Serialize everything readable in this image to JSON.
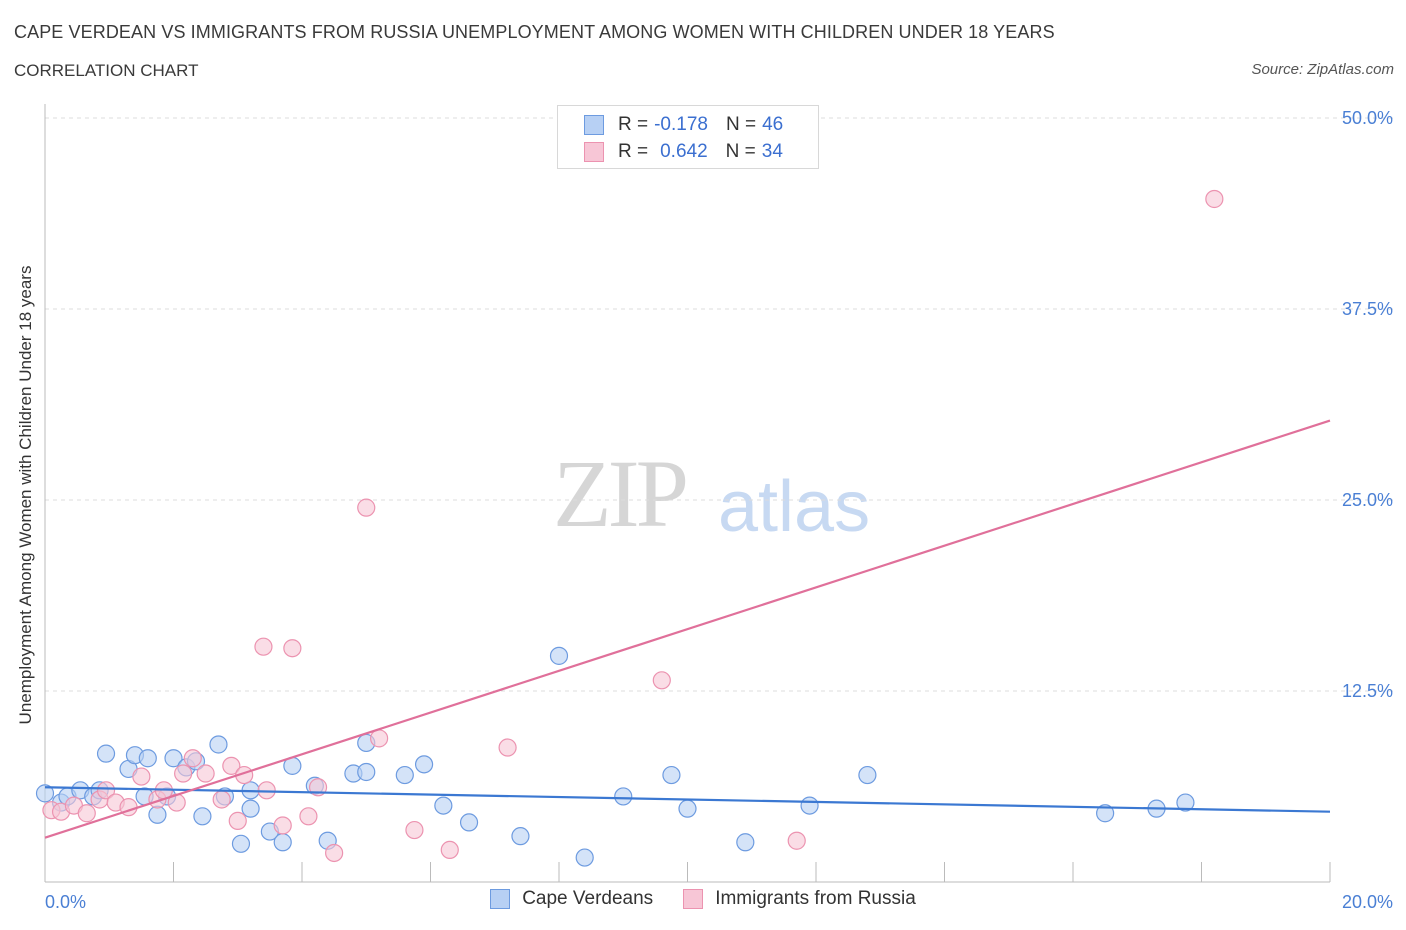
{
  "header": {
    "title": "CAPE VERDEAN VS IMMIGRANTS FROM RUSSIA UNEMPLOYMENT AMONG WOMEN WITH CHILDREN UNDER 18 YEARS",
    "subtitle": "CORRELATION CHART",
    "source": "Source: ZipAtlas.com"
  },
  "watermark": {
    "zip": "ZIP",
    "atlas": "atlas"
  },
  "stats_legend": {
    "rows": [
      {
        "r_label": "R =",
        "r_value": "-0.178",
        "n_label": "N =",
        "n_value": "46"
      },
      {
        "r_label": "R =",
        "r_value": "0.642",
        "n_label": "N =",
        "n_value": "34"
      }
    ]
  },
  "colors": {
    "blue_fill": "#b7d0f4",
    "blue_stroke": "#6d9be0",
    "blue_line": "#3b78d2",
    "pink_fill": "#f7c6d6",
    "pink_stroke": "#ec93b0",
    "pink_line": "#e0709a",
    "axis_text": "#4a7fd4",
    "grid": "#dcdcdc"
  },
  "chart_data": {
    "type": "scatter",
    "title": "CAPE VERDEAN VS IMMIGRANTS FROM RUSSIA UNEMPLOYMENT AMONG WOMEN WITH CHILDREN UNDER 18 YEARS",
    "xlabel": "",
    "ylabel": "Unemployment Among Women with Children Under 18 years",
    "xlim": [
      0,
      20
    ],
    "ylim": [
      0,
      50
    ],
    "x_tick_labels": [
      "0.0%",
      "20.0%"
    ],
    "y_tick_labels": [
      "12.5%",
      "25.0%",
      "37.5%",
      "50.0%"
    ],
    "y_ticks": [
      12.5,
      25.0,
      37.5,
      50.0
    ],
    "legend": "bottom-center",
    "series": [
      {
        "name": "Cape Verdeans",
        "r": -0.178,
        "n": 46,
        "trend": {
          "x": [
            0,
            20
          ],
          "y": [
            6.2,
            4.6
          ]
        },
        "points": [
          [
            0.0,
            5.8
          ],
          [
            0.25,
            5.2
          ],
          [
            0.35,
            5.6
          ],
          [
            0.55,
            6.0
          ],
          [
            0.75,
            5.6
          ],
          [
            0.85,
            6.0
          ],
          [
            0.95,
            8.4
          ],
          [
            1.3,
            7.4
          ],
          [
            1.4,
            8.3
          ],
          [
            1.55,
            5.6
          ],
          [
            1.6,
            8.1
          ],
          [
            1.75,
            4.4
          ],
          [
            1.9,
            5.6
          ],
          [
            2.0,
            8.1
          ],
          [
            2.2,
            7.5
          ],
          [
            2.35,
            7.9
          ],
          [
            2.45,
            4.3
          ],
          [
            2.7,
            9.0
          ],
          [
            2.8,
            5.6
          ],
          [
            3.05,
            2.5
          ],
          [
            3.2,
            6.0
          ],
          [
            3.2,
            4.8
          ],
          [
            3.5,
            3.3
          ],
          [
            3.7,
            2.6
          ],
          [
            3.85,
            7.6
          ],
          [
            4.2,
            6.3
          ],
          [
            4.4,
            2.7
          ],
          [
            4.8,
            7.1
          ],
          [
            5.0,
            9.1
          ],
          [
            5.0,
            7.2
          ],
          [
            5.6,
            7.0
          ],
          [
            5.9,
            7.7
          ],
          [
            6.2,
            5.0
          ],
          [
            6.6,
            3.9
          ],
          [
            7.4,
            3.0
          ],
          [
            8.0,
            14.8
          ],
          [
            8.4,
            1.6
          ],
          [
            9.0,
            5.6
          ],
          [
            9.75,
            7.0
          ],
          [
            10.0,
            4.8
          ],
          [
            10.9,
            2.6
          ],
          [
            11.9,
            5.0
          ],
          [
            12.8,
            7.0
          ],
          [
            16.5,
            4.5
          ],
          [
            17.3,
            4.8
          ],
          [
            17.75,
            5.2
          ]
        ]
      },
      {
        "name": "Immigrants from Russia",
        "r": 0.642,
        "n": 34,
        "trend": {
          "x": [
            0,
            20
          ],
          "y": [
            2.9,
            30.2
          ]
        },
        "points": [
          [
            0.1,
            4.7
          ],
          [
            0.25,
            4.6
          ],
          [
            0.45,
            5.0
          ],
          [
            0.65,
            4.5
          ],
          [
            0.85,
            5.4
          ],
          [
            0.95,
            6.0
          ],
          [
            1.1,
            5.2
          ],
          [
            1.3,
            4.9
          ],
          [
            1.5,
            6.9
          ],
          [
            1.75,
            5.4
          ],
          [
            1.85,
            6.0
          ],
          [
            2.05,
            5.2
          ],
          [
            2.15,
            7.1
          ],
          [
            2.3,
            8.1
          ],
          [
            2.5,
            7.1
          ],
          [
            2.75,
            5.4
          ],
          [
            2.9,
            7.6
          ],
          [
            3.0,
            4.0
          ],
          [
            3.1,
            7.0
          ],
          [
            3.4,
            15.4
          ],
          [
            3.45,
            6.0
          ],
          [
            3.7,
            3.7
          ],
          [
            3.85,
            15.3
          ],
          [
            4.1,
            4.3
          ],
          [
            4.25,
            6.2
          ],
          [
            4.5,
            1.9
          ],
          [
            5.0,
            24.5
          ],
          [
            5.2,
            9.4
          ],
          [
            5.75,
            3.4
          ],
          [
            6.3,
            2.1
          ],
          [
            7.2,
            8.8
          ],
          [
            9.6,
            13.2
          ],
          [
            11.7,
            2.7
          ],
          [
            18.2,
            44.7
          ]
        ]
      }
    ]
  },
  "legend_bottom": {
    "items": [
      {
        "label": "Cape Verdeans"
      },
      {
        "label": "Immigrants from Russia"
      }
    ]
  }
}
